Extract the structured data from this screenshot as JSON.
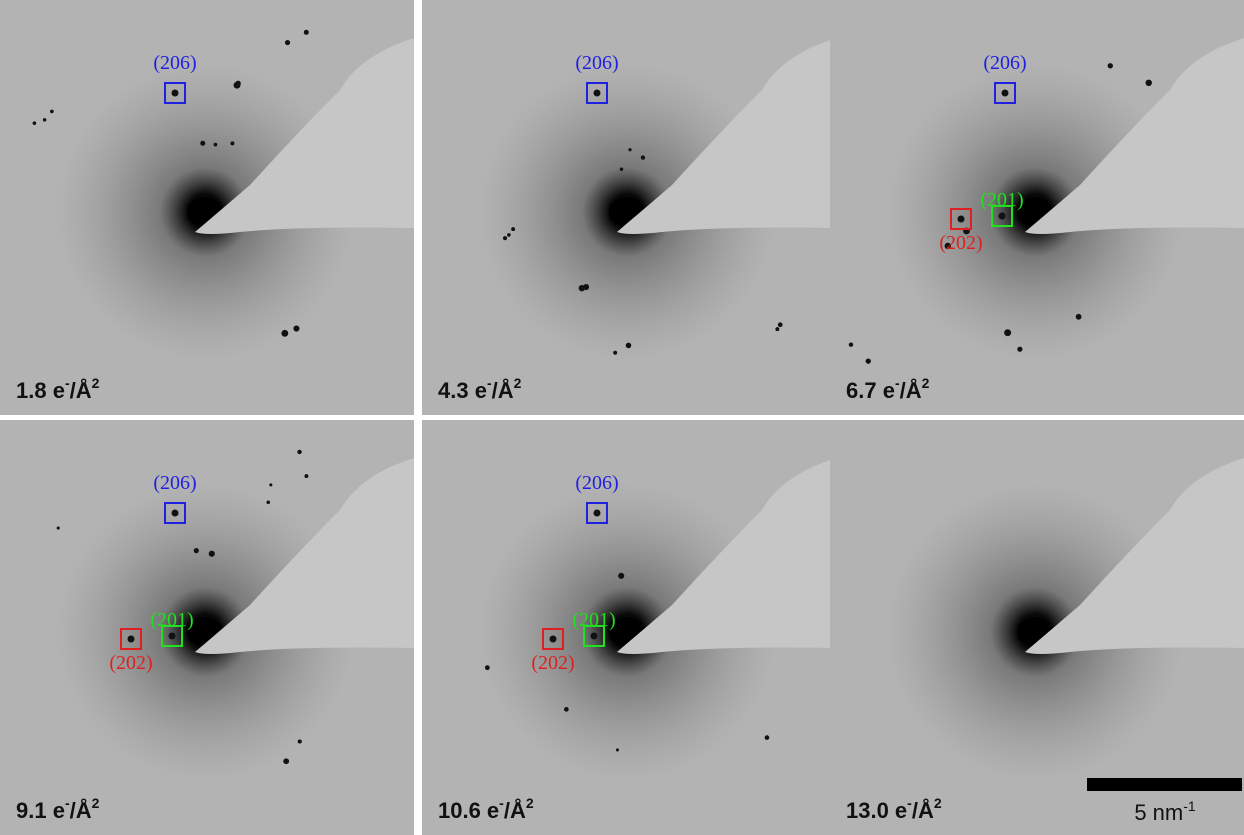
{
  "panels": [
    {
      "dose": [
        "1.8 e",
        "-",
        "/Å",
        "2"
      ],
      "spots": [
        {
          "label": "(206)",
          "color": "#2020e0"
        }
      ]
    },
    {
      "dose": [
        "4.3 e",
        "-",
        "/Å",
        "2"
      ],
      "spots": [
        {
          "label": "(206)",
          "color": "#2020e0"
        }
      ]
    },
    {
      "dose": [
        "6.7 e",
        "-",
        "/Å",
        "2"
      ],
      "spots": [
        {
          "label": "(206)",
          "color": "#2020e0"
        },
        {
          "label": "(201)",
          "color": "#20e020"
        },
        {
          "label": "(202)",
          "color": "#e02020"
        }
      ]
    },
    {
      "dose": [
        "9.1 e",
        "-",
        "/Å",
        "2"
      ],
      "spots": [
        {
          "label": "(206)",
          "color": "#2020e0"
        },
        {
          "label": "(201)",
          "color": "#20e020"
        },
        {
          "label": "(202)",
          "color": "#e02020"
        }
      ]
    },
    {
      "dose": [
        "10.6 e",
        "-",
        "/Å",
        "2"
      ],
      "spots": [
        {
          "label": "(206)",
          "color": "#2020e0"
        },
        {
          "label": "(201)",
          "color": "#20e020"
        },
        {
          "label": "(202)",
          "color": "#e02020"
        }
      ]
    },
    {
      "dose": [
        "13.0 e",
        "-",
        "/Å",
        "2"
      ],
      "spots": []
    }
  ],
  "scale_bar": [
    "5 nm",
    "-1"
  ]
}
